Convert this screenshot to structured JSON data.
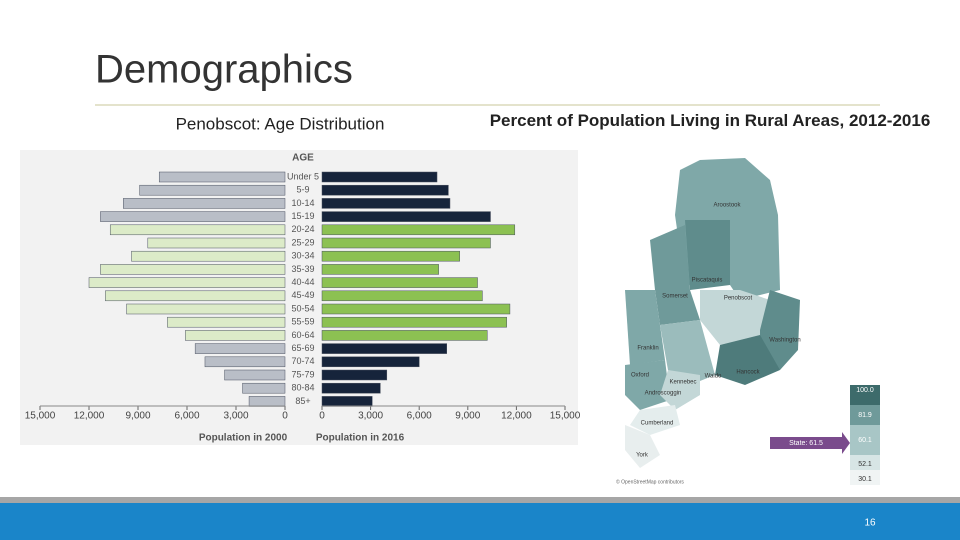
{
  "slide": {
    "title": "Demographics",
    "page_number": "16"
  },
  "chart_data": {
    "type": "pyramid",
    "title": "Penobscot: Age Distribution",
    "axis_title": "AGE",
    "categories": [
      "Under 5",
      "5-9",
      "10-14",
      "15-19",
      "20-24",
      "25-29",
      "30-34",
      "35-39",
      "40-44",
      "45-49",
      "50-54",
      "55-59",
      "60-64",
      "65-69",
      "70-74",
      "75-79",
      "80-84",
      "85+"
    ],
    "series": [
      {
        "name": "Population in 2000",
        "side": "left",
        "values": [
          7700,
          8900,
          9900,
          11300,
          10700,
          8400,
          9400,
          11300,
          12000,
          11000,
          9700,
          7200,
          6100,
          5500,
          4900,
          3700,
          2600,
          2200
        ],
        "colors": [
          "#b9bec7",
          "#b9bec7",
          "#b9bec7",
          "#b9bec7",
          "#dcebc8",
          "#dcebc8",
          "#dcebc8",
          "#dcebc8",
          "#dcebc8",
          "#dcebc8",
          "#dcebc8",
          "#dcebc8",
          "#dcebc8",
          "#b9bec7",
          "#b9bec7",
          "#b9bec7",
          "#b9bec7",
          "#b9bec7"
        ],
        "xlim": [
          15000,
          0
        ],
        "xticks": [
          {
            "value": 15000,
            "label": "15,000"
          },
          {
            "value": 12000,
            "label": "12,000"
          },
          {
            "value": 9000,
            "label": "9,000"
          },
          {
            "value": 6000,
            "label": "6,000"
          },
          {
            "value": 3000,
            "label": "3,000"
          },
          0
        ]
      },
      {
        "name": "Population in 2016",
        "side": "right",
        "values": [
          7100,
          7800,
          7900,
          10400,
          11900,
          10400,
          8500,
          7200,
          9600,
          9900,
          11600,
          11400,
          10200,
          7700,
          6000,
          4000,
          3600,
          3100
        ],
        "colors": [
          "#16243b",
          "#16243b",
          "#16243b",
          "#16243b",
          "#8cc152",
          "#8cc152",
          "#8cc152",
          "#8cc152",
          "#8cc152",
          "#8cc152",
          "#8cc152",
          "#8cc152",
          "#8cc152",
          "#16243b",
          "#16243b",
          "#16243b",
          "#16243b",
          "#16243b"
        ],
        "xlim": [
          0,
          15000
        ],
        "xticks": [
          0,
          {
            "value": 3000,
            "label": "3,000"
          },
          {
            "value": 6000,
            "label": "6,000"
          },
          {
            "value": 9000,
            "label": "9,000"
          },
          {
            "value": 12000,
            "label": "12,000"
          },
          {
            "value": 15000,
            "label": "15,000"
          }
        ]
      }
    ]
  },
  "map": {
    "title": "Percent of Population Living in Rural Areas, 2012-2016",
    "counties": [
      "Aroostook",
      "Piscataquis",
      "Somerset",
      "Penobscot",
      "Washington",
      "Franklin",
      "Oxford",
      "Kennebec",
      "Waldo",
      "Hancock",
      "Androscoggin",
      "Cumberland",
      "York"
    ],
    "legend": [
      "100.0",
      "81.9",
      "60.1",
      "52.1",
      "30.1"
    ],
    "state_label": "State: 61.5",
    "credit": "© OpenStreetMap contributors"
  }
}
